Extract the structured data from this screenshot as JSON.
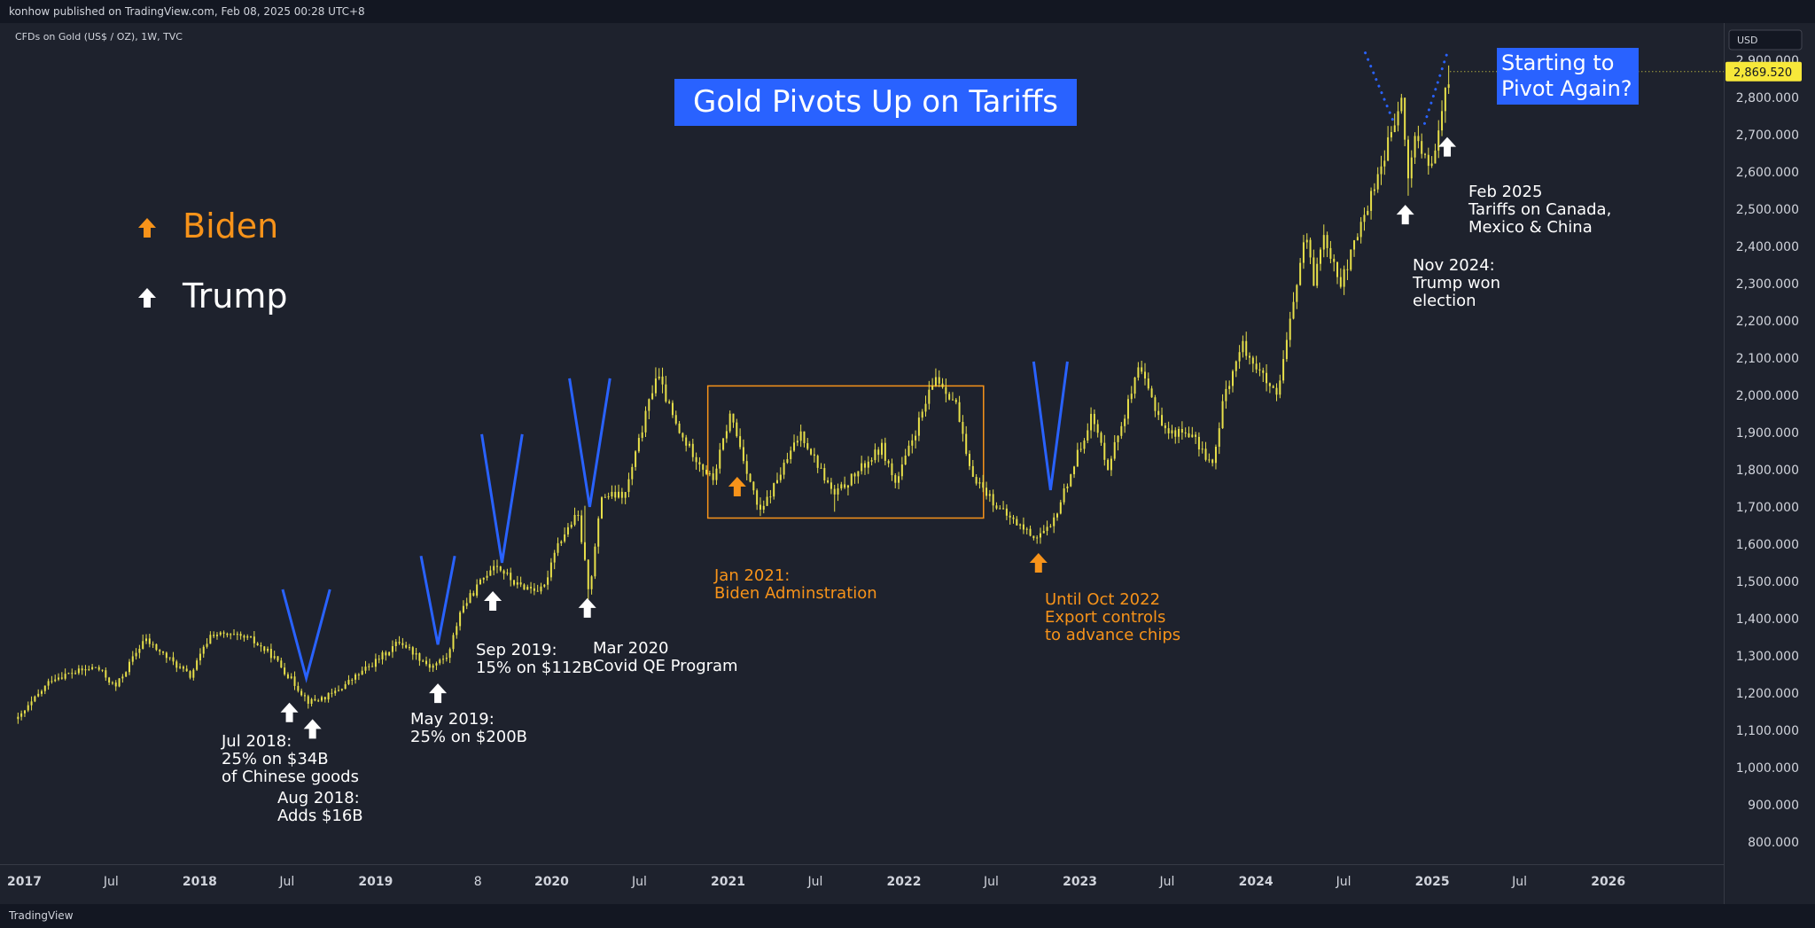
{
  "header": {
    "published": "konhow published on TradingView.com, Feb 08, 2025 00:28 UTC+8",
    "symbol": "CFDs on Gold (US$ / OZ), 1W, TVC"
  },
  "footer": {
    "brand": "TradingView"
  },
  "price_axis": {
    "currency": "USD",
    "ticks": [
      "800.000",
      "900.000",
      "1,000.000",
      "1,100.000",
      "1,200.000",
      "1,300.000",
      "1,400.000",
      "1,500.000",
      "1,600.000",
      "1,700.000",
      "1,800.000",
      "1,900.000",
      "2,000.000",
      "2,100.000",
      "2,200.000",
      "2,300.000",
      "2,400.000",
      "2,500.000",
      "2,600.000",
      "2,700.000",
      "2,800.000",
      "2,900.000"
    ],
    "last_price": "2,869.520"
  },
  "colors": {
    "background": "#1e222d",
    "candle": "#e8e04a",
    "v_mark": "#2962ff",
    "trump": "#ffffff",
    "biden": "#f7931a",
    "title_bg": "#2962ff",
    "price_label_bg": "#f7e83a"
  },
  "legend": {
    "biden": "Biden",
    "trump": "Trump"
  },
  "title": "Gold Pivots Up on Tariffs",
  "callout": {
    "line1": "Starting to",
    "line2": "Pivot Again?"
  },
  "annotations": {
    "jul2018": [
      "Jul 2018:",
      "25% on $34B",
      "of Chinese goods"
    ],
    "aug2018": [
      "Aug 2018:",
      "Adds $16B"
    ],
    "may2019": [
      "May 2019:",
      "25% on $200B"
    ],
    "sep2019": [
      "Sep 2019:",
      "15% on $112B"
    ],
    "mar2020": [
      "Mar 2020",
      "Covid QE Program"
    ],
    "jan2021": [
      "Jan 2021:",
      "Biden Adminstration"
    ],
    "oct2022": [
      "Until Oct 2022",
      "Export controls",
      "to advance chips"
    ],
    "nov2024": [
      "Nov 2024:",
      "Trump won",
      "election"
    ],
    "feb2025": [
      "Feb 2025",
      "Tariffs on Canada,",
      "Mexico & China"
    ]
  },
  "chart_data": {
    "type": "candlestick",
    "timeframe": "1W",
    "y_unit": "USD / OZ",
    "ylim": [
      740,
      3000
    ],
    "x_range": [
      "2016-12-01",
      "2026-08-01"
    ],
    "time_axis": [
      {
        "date": "2017-01-01",
        "label": "2017"
      },
      {
        "date": "2017-07-01",
        "label": "Jul"
      },
      {
        "date": "2018-01-01",
        "label": "2018"
      },
      {
        "date": "2018-07-01",
        "label": "Jul"
      },
      {
        "date": "2019-01-01",
        "label": "2019"
      },
      {
        "date": "2019-08-01",
        "label": "8"
      },
      {
        "date": "2020-01-01",
        "label": "2020"
      },
      {
        "date": "2020-07-01",
        "label": "Jul"
      },
      {
        "date": "2021-01-01",
        "label": "2021"
      },
      {
        "date": "2021-07-01",
        "label": "Jul"
      },
      {
        "date": "2022-01-01",
        "label": "2022"
      },
      {
        "date": "2022-07-01",
        "label": "Jul"
      },
      {
        "date": "2023-01-01",
        "label": "2023"
      },
      {
        "date": "2023-07-01",
        "label": "Jul"
      },
      {
        "date": "2024-01-01",
        "label": "2024"
      },
      {
        "date": "2024-07-01",
        "label": "Jul"
      },
      {
        "date": "2025-01-01",
        "label": "2025"
      },
      {
        "date": "2025-07-01",
        "label": "Jul"
      },
      {
        "date": "2026-01-01",
        "label": "2026"
      }
    ],
    "close_path": [
      [
        "2016-12-20",
        1130
      ],
      [
        "2017-03-01",
        1240
      ],
      [
        "2017-06-01",
        1270
      ],
      [
        "2017-07-10",
        1215
      ],
      [
        "2017-09-08",
        1345
      ],
      [
        "2017-12-12",
        1245
      ],
      [
        "2018-01-25",
        1360
      ],
      [
        "2018-04-15",
        1345
      ],
      [
        "2018-06-01",
        1300
      ],
      [
        "2018-08-16",
        1175
      ],
      [
        "2018-10-01",
        1195
      ],
      [
        "2019-01-01",
        1285
      ],
      [
        "2019-02-20",
        1340
      ],
      [
        "2019-04-25",
        1270
      ],
      [
        "2019-06-01",
        1300
      ],
      [
        "2019-06-25",
        1420
      ],
      [
        "2019-09-04",
        1550
      ],
      [
        "2019-10-20",
        1490
      ],
      [
        "2019-12-15",
        1475
      ],
      [
        "2020-01-08",
        1590
      ],
      [
        "2020-02-24",
        1680
      ],
      [
        "2020-03-19",
        1470
      ],
      [
        "2020-04-14",
        1730
      ],
      [
        "2020-06-01",
        1730
      ],
      [
        "2020-08-06",
        2060
      ],
      [
        "2020-09-20",
        1900
      ],
      [
        "2020-11-30",
        1770
      ],
      [
        "2021-01-06",
        1950
      ],
      [
        "2021-03-08",
        1680
      ],
      [
        "2021-06-01",
        1900
      ],
      [
        "2021-08-09",
        1730
      ],
      [
        "2021-11-16",
        1860
      ],
      [
        "2021-12-15",
        1760
      ],
      [
        "2022-03-08",
        2050
      ],
      [
        "2022-04-18",
        1980
      ],
      [
        "2022-05-16",
        1800
      ],
      [
        "2022-07-20",
        1690
      ],
      [
        "2022-09-28",
        1620
      ],
      [
        "2022-11-01",
        1640
      ],
      [
        "2023-01-25",
        1945
      ],
      [
        "2023-02-28",
        1810
      ],
      [
        "2023-05-04",
        2070
      ],
      [
        "2023-06-29",
        1900
      ],
      [
        "2023-08-15",
        1900
      ],
      [
        "2023-10-05",
        1810
      ],
      [
        "2023-10-27",
        2000
      ],
      [
        "2023-12-04",
        2135
      ],
      [
        "2024-02-14",
        1990
      ],
      [
        "2024-04-12",
        2430
      ],
      [
        "2024-05-01",
        2300
      ],
      [
        "2024-05-20",
        2440
      ],
      [
        "2024-06-26",
        2300
      ],
      [
        "2024-08-20",
        2510
      ],
      [
        "2024-10-30",
        2790
      ],
      [
        "2024-11-14",
        2540
      ],
      [
        "2024-11-22",
        2710
      ],
      [
        "2024-12-30",
        2600
      ],
      [
        "2025-01-25",
        2790
      ],
      [
        "2025-02-07",
        2869.52
      ]
    ],
    "spike_highs": [
      [
        "2017-09-08",
        1357
      ],
      [
        "2018-01-25",
        1366
      ],
      [
        "2019-09-04",
        1557
      ],
      [
        "2020-03-09",
        1703
      ],
      [
        "2020-08-06",
        2075
      ],
      [
        "2021-01-06",
        1959
      ],
      [
        "2022-03-08",
        2070
      ],
      [
        "2023-05-04",
        2079
      ],
      [
        "2023-12-04",
        2146
      ],
      [
        "2024-04-12",
        2431
      ],
      [
        "2024-10-30",
        2790
      ],
      [
        "2025-02-07",
        2886
      ]
    ],
    "spike_lows": [
      [
        "2016-12-20",
        1122
      ],
      [
        "2018-08-16",
        1160
      ],
      [
        "2019-05-02",
        1266
      ],
      [
        "2020-03-19",
        1451
      ],
      [
        "2021-03-08",
        1676
      ],
      [
        "2021-08-09",
        1687
      ],
      [
        "2022-09-28",
        1614
      ],
      [
        "2023-10-05",
        1810
      ],
      [
        "2024-02-14",
        1984
      ],
      [
        "2024-11-14",
        2536
      ]
    ],
    "range_box": {
      "from": "2020-11-20",
      "to": "2022-06-15",
      "low": 1670,
      "high": 2025
    },
    "trump_markers": [
      "2018-07-06",
      "2018-08-23",
      "2019-05-10",
      "2019-09-01",
      "2020-03-15",
      "2024-11-06",
      "2025-02-01"
    ],
    "biden_markers": [
      "2021-01-20",
      "2022-10-07"
    ],
    "v_marks": [
      {
        "bottom": "2018-08-10",
        "price": 1240,
        "half_weeks": 7,
        "height": 100
      },
      {
        "bottom": "2019-05-10",
        "price": 1330,
        "half_weeks": 5,
        "height": 100
      },
      {
        "bottom": "2019-09-20",
        "price": 1550,
        "half_weeks": 6,
        "height": 145
      },
      {
        "bottom": "2020-03-20",
        "price": 1700,
        "half_weeks": 6,
        "height": 145
      },
      {
        "bottom": "2022-11-01",
        "price": 1745,
        "half_weeks": 5,
        "height": 145
      }
    ],
    "dotted_v": [
      [
        "2024-08-15",
        2920
      ],
      [
        "2024-10-14",
        2730
      ],
      [
        "2024-12-16",
        2730
      ],
      [
        "2025-02-01",
        2920
      ]
    ]
  }
}
